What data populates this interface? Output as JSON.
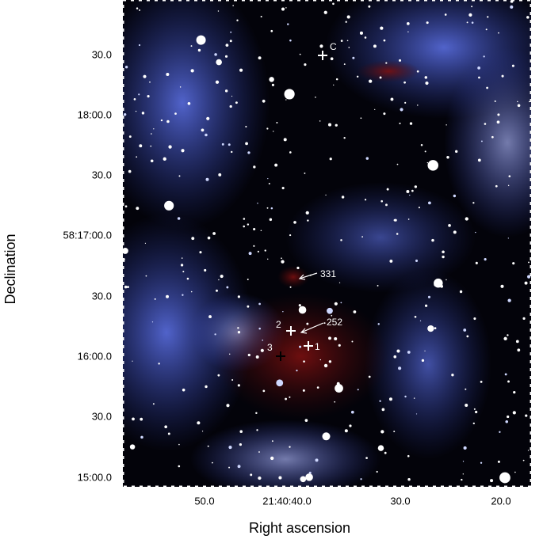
{
  "axes": {
    "x_label": "Right ascension",
    "y_label": "Declination",
    "x_ticks": [
      "50.0",
      "21:40:40.0",
      "30.0",
      "20.0"
    ],
    "y_ticks": [
      "30.0",
      "18:00.0",
      "30.0",
      "58:17:00.0",
      "30.0",
      "16:00.0",
      "30.0",
      "15:00.0"
    ]
  },
  "annotations": [
    "C",
    "331",
    "2",
    "252",
    "3",
    "1"
  ]
}
